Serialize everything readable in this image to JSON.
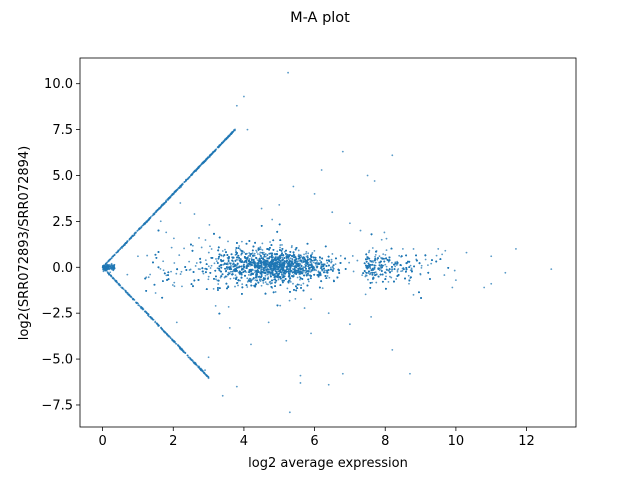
{
  "chart_data": {
    "type": "scatter",
    "title": "M-A plot",
    "xlabel": "log2 average expression",
    "ylabel": "log2(SRR072893/SRR072894)",
    "xlim": [
      -0.64,
      13.4
    ],
    "ylim": [
      -8.7,
      11.4
    ],
    "xticks": [
      0,
      2,
      4,
      6,
      8,
      10,
      12
    ],
    "xtick_labels": [
      "0",
      "2",
      "4",
      "6",
      "8",
      "10",
      "12"
    ],
    "yticks": [
      -7.5,
      -5.0,
      -2.5,
      0.0,
      2.5,
      5.0,
      7.5,
      10.0
    ],
    "ytick_labels": [
      "−7.5",
      "−5.0",
      "−2.5",
      "0.0",
      "2.5",
      "5.0",
      "7.5",
      "10.0"
    ],
    "grid": false,
    "marker_color": "#1f77b4",
    "point_groups": [
      {
        "name": "upper diagonal edge",
        "description": "points with M = 2A (only one sample expressed)",
        "x_range": [
          0.0,
          3.75
        ],
        "slope": 2.0
      },
      {
        "name": "lower diagonal edge",
        "description": "points with M = -2A",
        "x_range": [
          0.0,
          3.0
        ],
        "slope": -2.0
      },
      {
        "name": "main cloud",
        "x_range": [
          0.3,
          12.7
        ],
        "center_y": 0.0
      }
    ],
    "points": [
      [
        5.25,
        10.6
      ],
      [
        4.0,
        9.3
      ],
      [
        3.8,
        8.8
      ],
      [
        4.1,
        7.5
      ],
      [
        6.8,
        6.3
      ],
      [
        8.2,
        6.1
      ],
      [
        7.5,
        5.0
      ],
      [
        7.7,
        4.7
      ],
      [
        6.2,
        5.3
      ],
      [
        5.4,
        4.4
      ],
      [
        12.7,
        -0.1
      ],
      [
        11.7,
        1.0
      ],
      [
        11.4,
        -0.3
      ],
      [
        11.0,
        0.6
      ],
      [
        11.0,
        -0.9
      ],
      [
        10.8,
        -1.1
      ],
      [
        10.3,
        0.8
      ],
      [
        10.0,
        -0.7
      ],
      [
        9.9,
        -1.1
      ],
      [
        9.7,
        0.9
      ],
      [
        9.5,
        1.0
      ],
      [
        9.3,
        0.2
      ],
      [
        9.0,
        -0.4
      ],
      [
        8.7,
        -5.8
      ],
      [
        8.2,
        -4.5
      ],
      [
        6.8,
        -5.8
      ],
      [
        6.4,
        -6.4
      ],
      [
        5.6,
        -6.3
      ],
      [
        5.6,
        -5.9
      ],
      [
        5.3,
        -7.9
      ],
      [
        3.8,
        -6.5
      ],
      [
        3.4,
        -7.0
      ],
      [
        2.9,
        -5.6
      ],
      [
        3.0,
        -4.9
      ],
      [
        2.2,
        3.5
      ],
      [
        2.1,
        -3.0
      ],
      [
        4.5,
        3.2
      ],
      [
        4.8,
        2.6
      ],
      [
        5.0,
        3.4
      ],
      [
        6.0,
        4.0
      ],
      [
        6.5,
        3.0
      ],
      [
        7.0,
        2.4
      ],
      [
        7.3,
        2.0
      ],
      [
        7.9,
        1.5
      ],
      [
        8.5,
        1.0
      ],
      [
        8.8,
        -1.5
      ],
      [
        7.6,
        -2.7
      ],
      [
        7.0,
        -3.1
      ],
      [
        6.4,
        -2.5
      ],
      [
        5.9,
        -3.6
      ],
      [
        5.2,
        -4.0
      ],
      [
        4.7,
        -3.0
      ],
      [
        4.2,
        -4.2
      ],
      [
        3.6,
        -3.3
      ],
      [
        3.2,
        -2.1
      ],
      [
        2.6,
        2.9
      ],
      [
        1.8,
        1.9
      ],
      [
        1.5,
        -1.4
      ],
      [
        1.0,
        0.6
      ],
      [
        0.7,
        -0.4
      ]
    ]
  }
}
